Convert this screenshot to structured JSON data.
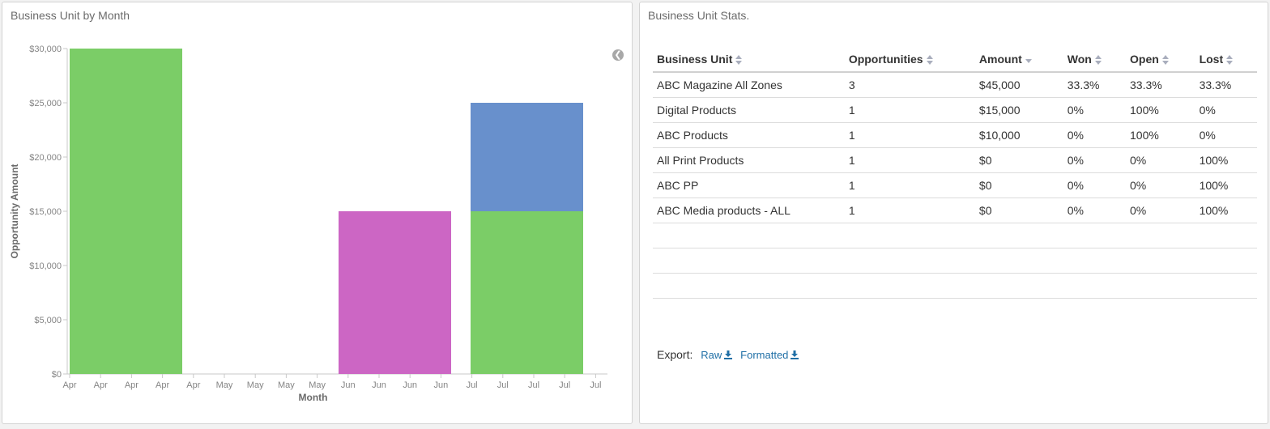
{
  "left_panel": {
    "title": "Business Unit by Month"
  },
  "right_panel": {
    "title": "Business Unit Stats."
  },
  "chart_data": {
    "type": "bar",
    "stacked": true,
    "title": "",
    "xlabel": "Month",
    "ylabel": "Opportunity Amount",
    "ylim": [
      0,
      30000
    ],
    "y_ticks": [
      "$0",
      "$5,000",
      "$10,000",
      "$15,000",
      "$20,000",
      "$25,000",
      "$30,000"
    ],
    "x_tick_labels": [
      "Apr",
      "Apr",
      "Apr",
      "Apr",
      "Apr",
      "May",
      "May",
      "May",
      "May",
      "Jun",
      "Jun",
      "Jun",
      "Jun",
      "Jul",
      "Jul",
      "Jul",
      "Jul",
      "Jul"
    ],
    "categories": [
      "Apr",
      "May",
      "Jun",
      "Jul"
    ],
    "series": [
      {
        "color": "#7bcd67",
        "values": [
          30000,
          0,
          0,
          15000
        ]
      },
      {
        "color": "#cc66c4",
        "values": [
          0,
          0,
          15000,
          0
        ]
      },
      {
        "color": "#6890cc",
        "values": [
          0,
          0,
          0,
          10000
        ]
      }
    ]
  },
  "table": {
    "columns": [
      {
        "label": "Business Unit",
        "sort": "both"
      },
      {
        "label": "Opportunities",
        "sort": "both"
      },
      {
        "label": "Amount",
        "sort": "desc"
      },
      {
        "label": "Won",
        "sort": "both"
      },
      {
        "label": "Open",
        "sort": "both"
      },
      {
        "label": "Lost",
        "sort": "both"
      }
    ],
    "rows": [
      [
        "ABC Magazine All Zones",
        "3",
        "$45,000",
        "33.3%",
        "33.3%",
        "33.3%"
      ],
      [
        "Digital Products",
        "1",
        "$15,000",
        "0%",
        "100%",
        "0%"
      ],
      [
        "ABC Products",
        "1",
        "$10,000",
        "0%",
        "100%",
        "0%"
      ],
      [
        "All Print Products",
        "1",
        "$0",
        "0%",
        "0%",
        "100%"
      ],
      [
        "ABC PP",
        "1",
        "$0",
        "0%",
        "0%",
        "100%"
      ],
      [
        "ABC Media products - ALL",
        "1",
        "$0",
        "0%",
        "0%",
        "100%"
      ],
      [
        "",
        "",
        "",
        "",
        "",
        ""
      ],
      [
        "",
        "",
        "",
        "",
        "",
        ""
      ],
      [
        "",
        "",
        "",
        "",
        "",
        ""
      ]
    ]
  },
  "export": {
    "label": "Export:",
    "raw": "Raw",
    "formatted": "Formatted"
  },
  "icons": {
    "collapse": "chevron-left-circle-icon",
    "download": "download-icon"
  }
}
